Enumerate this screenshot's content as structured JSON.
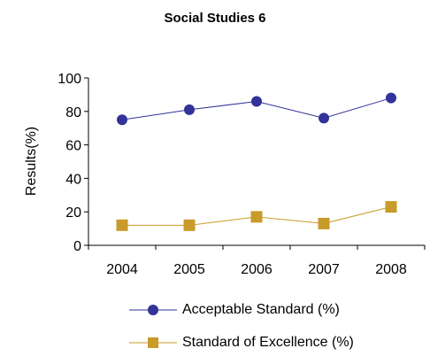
{
  "chart_data": {
    "type": "line",
    "title": "Social Studies 6",
    "ylabel": "Results(%)",
    "xlabel": "",
    "categories": [
      "2004",
      "2005",
      "2006",
      "2007",
      "2008"
    ],
    "ylim": [
      0,
      100
    ],
    "yticks": [
      0,
      20,
      40,
      60,
      80,
      100
    ],
    "grid": false,
    "legend_position": "bottom",
    "series": [
      {
        "name": "Acceptable Standard (%)",
        "values": [
          75,
          81,
          86,
          76,
          88
        ],
        "color": "#333399",
        "marker": "circle"
      },
      {
        "name": "Standard of Excellence (%)",
        "values": [
          12,
          12,
          17,
          13,
          23
        ],
        "color": "#c89b2a",
        "marker": "square"
      }
    ]
  }
}
